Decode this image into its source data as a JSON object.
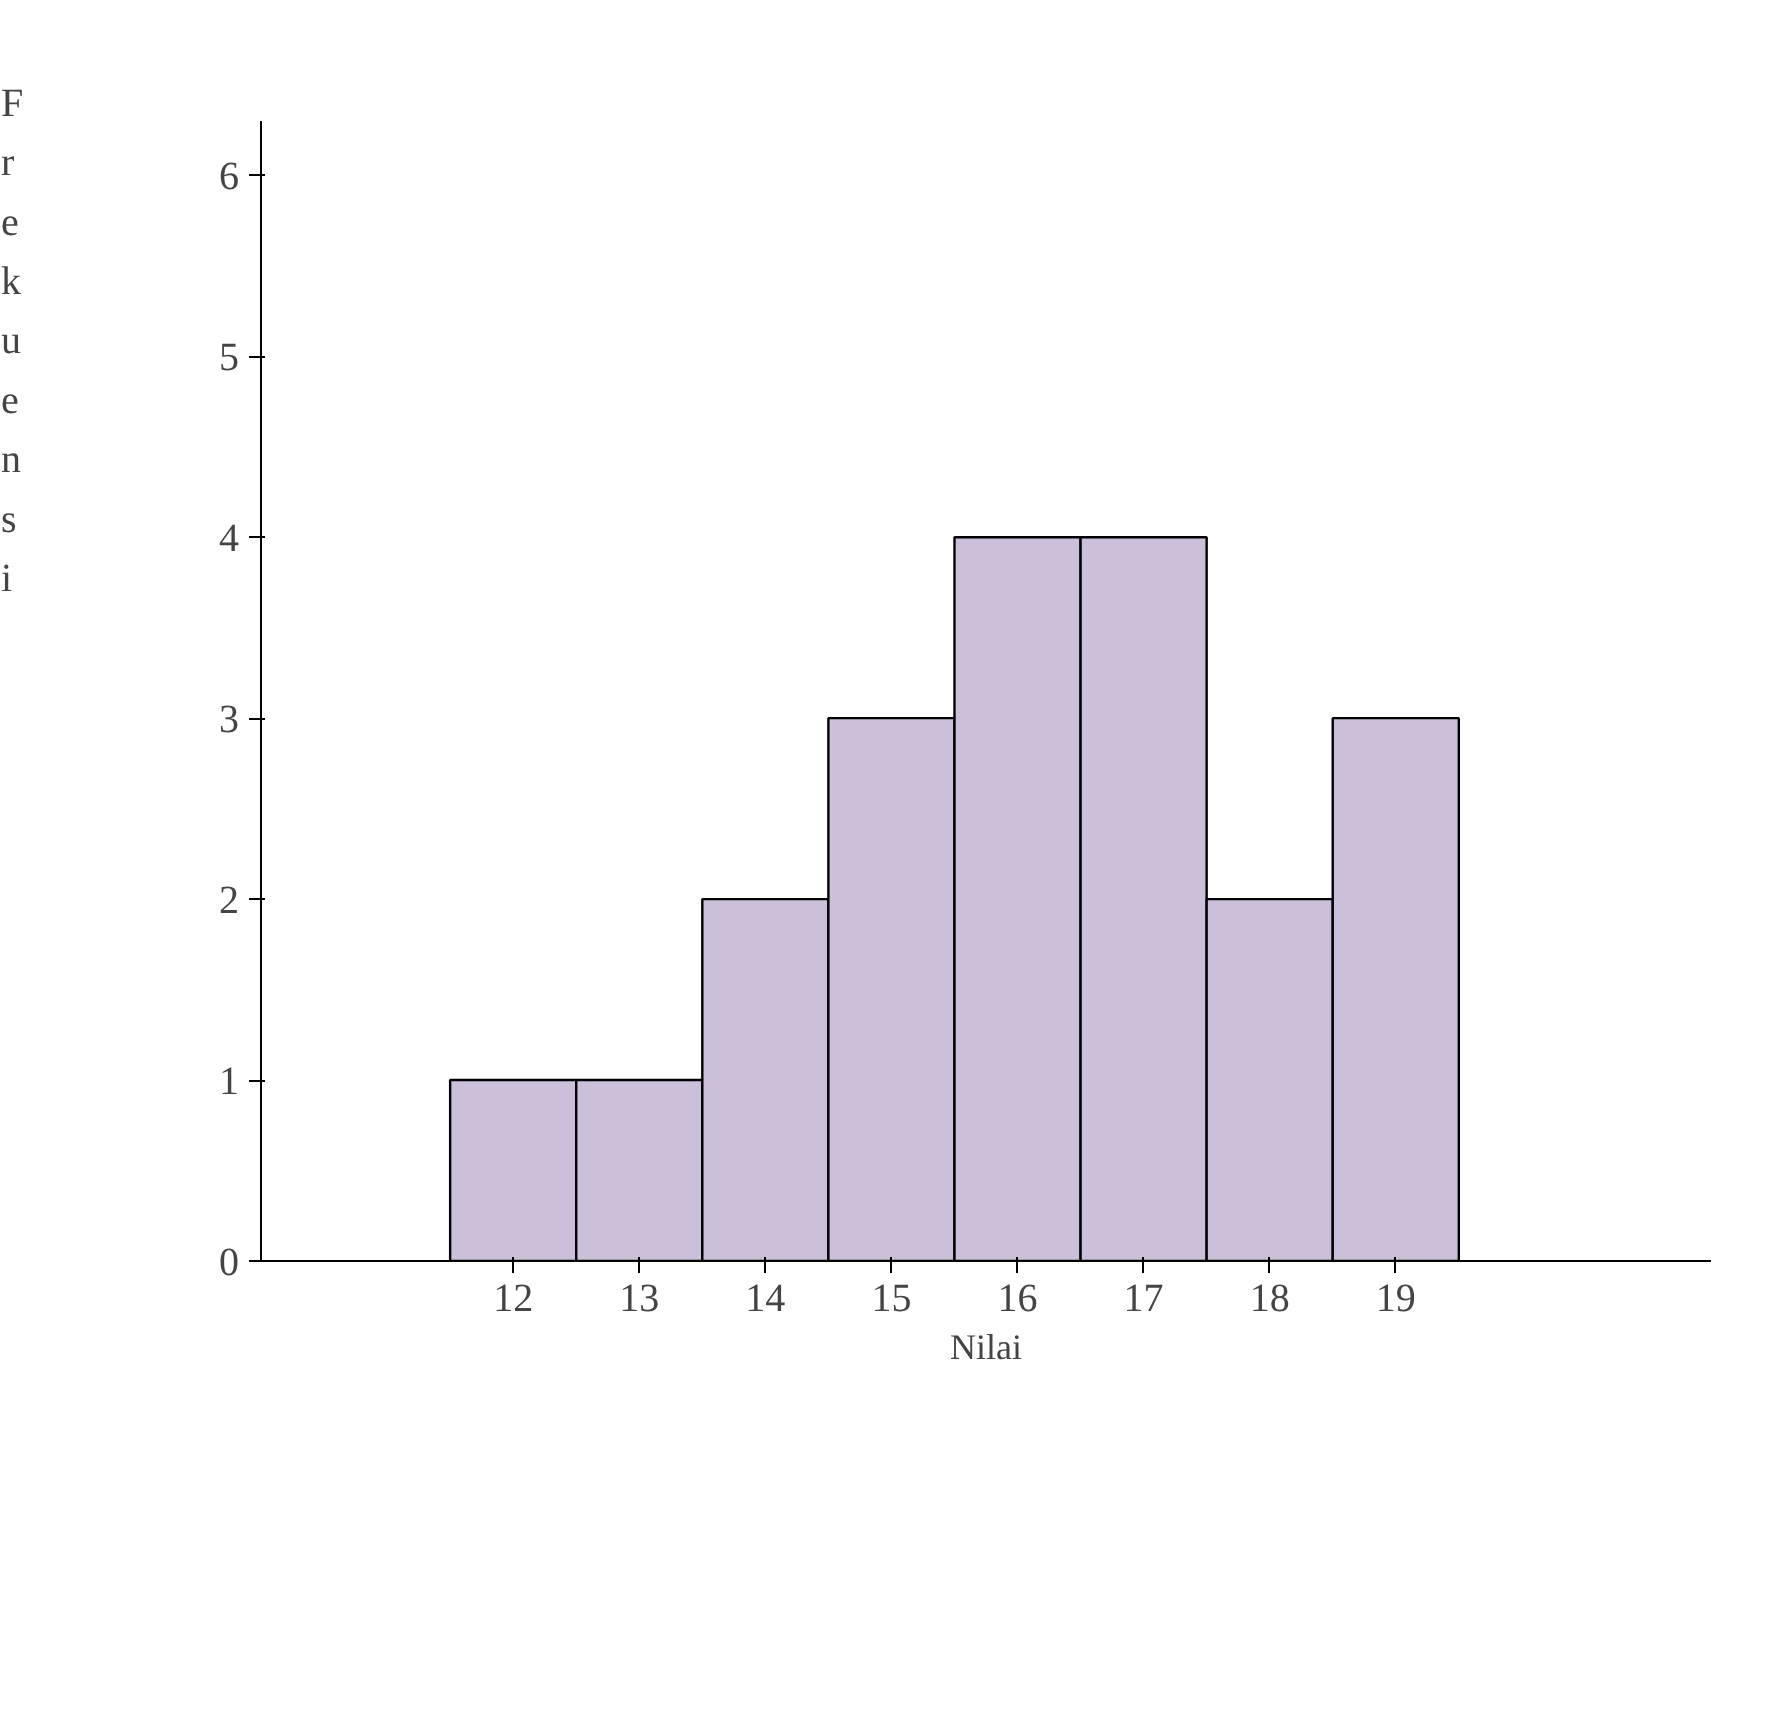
{
  "chart_data": {
    "type": "histogram",
    "xlabel": "Nilai",
    "ylabel": "Frekuensi",
    "bins": [
      11.5,
      12.5,
      13.5,
      14.5,
      15.5,
      16.5,
      17.5,
      18.5,
      19.5
    ],
    "values": [
      1,
      1,
      2,
      3,
      4,
      4,
      2,
      3
    ],
    "color": "#cbbfda",
    "xlim": [
      10,
      21.5
    ],
    "xticks": [
      12,
      13,
      14,
      15,
      16,
      17,
      18,
      19
    ],
    "ylim": [
      0,
      6.3
    ],
    "yticks": [
      0,
      1,
      2,
      3,
      4,
      5,
      6
    ],
    "grid": false
  }
}
